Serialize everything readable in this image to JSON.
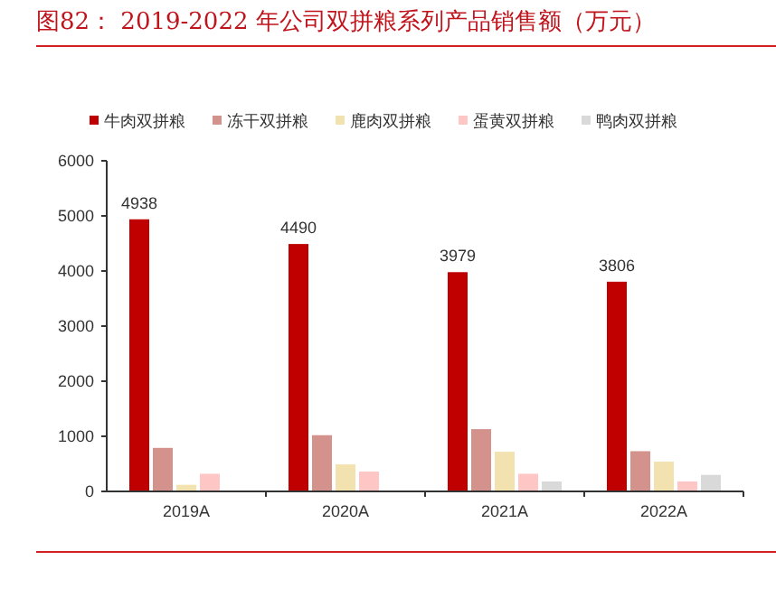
{
  "chart_data": {
    "type": "bar",
    "title": "图82：  2019-2022 年公司双拼粮系列产品销售额（万元）",
    "categories": [
      "2019A",
      "2020A",
      "2021A",
      "2022A"
    ],
    "series": [
      {
        "name": "牛肉双拼粮",
        "color": "#c00000",
        "values": [
          4938,
          4490,
          3979,
          3806
        ],
        "value_labels": [
          "4938",
          "4490",
          "3979",
          "3806"
        ]
      },
      {
        "name": "冻干双拼粮",
        "color": "#d4928c",
        "values": [
          790,
          1020,
          1130,
          730
        ]
      },
      {
        "name": "鹿肉双拼粮",
        "color": "#f2e2b0",
        "values": [
          120,
          490,
          720,
          540
        ]
      },
      {
        "name": "蛋黄双拼粮",
        "color": "#ffc6c6",
        "values": [
          320,
          360,
          320,
          180
        ]
      },
      {
        "name": "鸭肉双拼粮",
        "color": "#d9d9d9",
        "values": [
          null,
          null,
          180,
          300
        ]
      }
    ],
    "ylim": [
      0,
      6000
    ],
    "yticks": [
      0,
      1000,
      2000,
      3000,
      4000,
      5000,
      6000
    ],
    "grid": false,
    "legend": "top"
  }
}
